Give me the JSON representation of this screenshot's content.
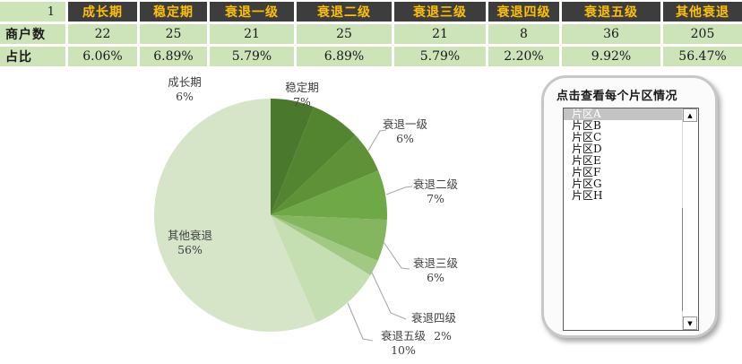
{
  "table": {
    "corner_label": "1",
    "columns": [
      "成长期",
      "稳定期",
      "衰退一级",
      "衰退二级",
      "衰退三级",
      "衰退四级",
      "衰退五级",
      "其他衰退"
    ],
    "rows": [
      {
        "label": "商户数",
        "values": [
          "22",
          "25",
          "21",
          "25",
          "21",
          "8",
          "36",
          "205"
        ]
      },
      {
        "label": "占比",
        "values": [
          "6.06%",
          "6.89%",
          "5.79%",
          "6.89%",
          "5.79%",
          "2.20%",
          "9.92%",
          "56.47%"
        ]
      }
    ],
    "colors": {
      "header_bg": "#3d3d3d",
      "header_text": "#ffc000",
      "cell_bg": "#cde3b8"
    }
  },
  "chart_data": {
    "type": "pie",
    "title": "",
    "categories": [
      "成长期",
      "稳定期",
      "衰退一级",
      "衰退二级",
      "衰退三级",
      "衰退四级",
      "衰退五级",
      "其他衰退"
    ],
    "values": [
      6.06,
      6.89,
      5.79,
      6.89,
      5.79,
      2.2,
      9.92,
      56.47
    ],
    "counts": [
      22,
      25,
      21,
      25,
      21,
      8,
      36,
      205
    ],
    "display_percents": [
      "6%",
      "7%",
      "6%",
      "7%",
      "6%",
      "2%",
      "10%",
      "56%"
    ],
    "colors": [
      "#4a782c",
      "#538430",
      "#5f9139",
      "#6ea847",
      "#84b65f",
      "#a2c984",
      "#c5deb2",
      "#d6e5c8"
    ],
    "start_angle_deg": 0,
    "direction": "clockwise",
    "legend": "none",
    "label_style": "category name + percent, outside with leader lines; largest slice labeled inside",
    "leader_line_color": "#a8a8a8"
  },
  "panel": {
    "title": "点击查看每个片区情况",
    "list_items": [
      "片区A",
      "片区B",
      "片区C",
      "片区D",
      "片区E",
      "片区F",
      "片区G",
      "片区H"
    ],
    "selected_index": 0,
    "selected_item": "片区A",
    "scrollbar": {
      "up_icon": "▲",
      "down_icon": "▼"
    }
  }
}
